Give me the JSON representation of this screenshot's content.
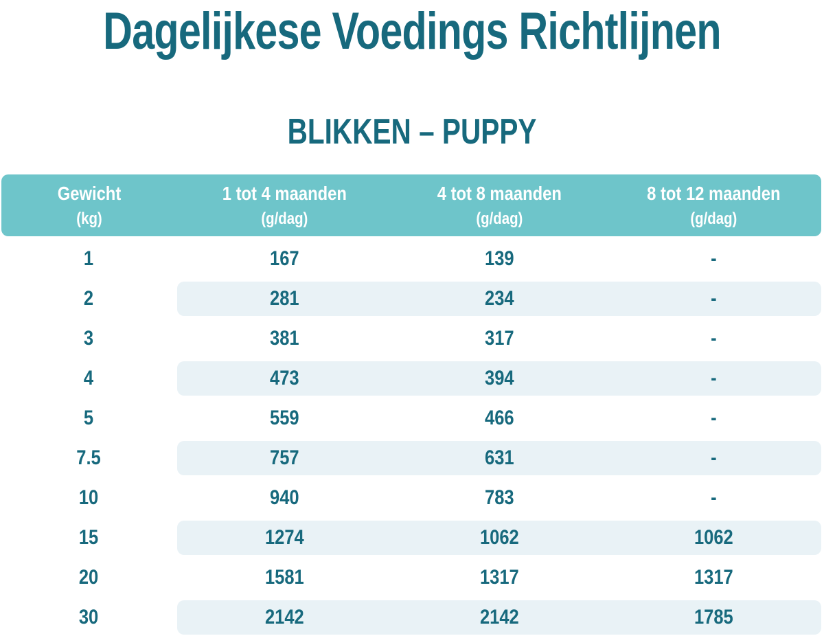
{
  "page": {
    "title": "Dagelijkese Voedings Richtlijnen",
    "subtitle": "BLIKKEN – PUPPY"
  },
  "chart_data": {
    "type": "table",
    "title": "Dagelijkese Voedings Richtlijnen",
    "subtitle": "BLIKKEN – PUPPY",
    "columns": [
      {
        "label": "Gewicht",
        "unit": "(kg)"
      },
      {
        "label": "1 tot 4 maanden",
        "unit": "(g/dag)"
      },
      {
        "label": "4 tot 8 maanden",
        "unit": "(g/dag)"
      },
      {
        "label": "8 tot 12 maanden",
        "unit": "(g/dag)"
      }
    ],
    "rows": [
      [
        "1",
        "167",
        "139",
        "-"
      ],
      [
        "2",
        "281",
        "234",
        "-"
      ],
      [
        "3",
        "381",
        "317",
        "-"
      ],
      [
        "4",
        "473",
        "394",
        "-"
      ],
      [
        "5",
        "559",
        "466",
        "-"
      ],
      [
        "7.5",
        "757",
        "631",
        "-"
      ],
      [
        "10",
        "940",
        "783",
        "-"
      ],
      [
        "15",
        "1274",
        "1062",
        "1062"
      ],
      [
        "20",
        "1581",
        "1317",
        "1317"
      ],
      [
        "30",
        "2142",
        "2142",
        "1785"
      ]
    ],
    "layout": {
      "header_position": "top",
      "striped_rows": "even",
      "grid": "off"
    }
  },
  "colors": {
    "header_bg": "#6ec5ca",
    "header_text": "#ffffff",
    "stripe_bg": "#e9f2f6",
    "text": "#17697d"
  }
}
